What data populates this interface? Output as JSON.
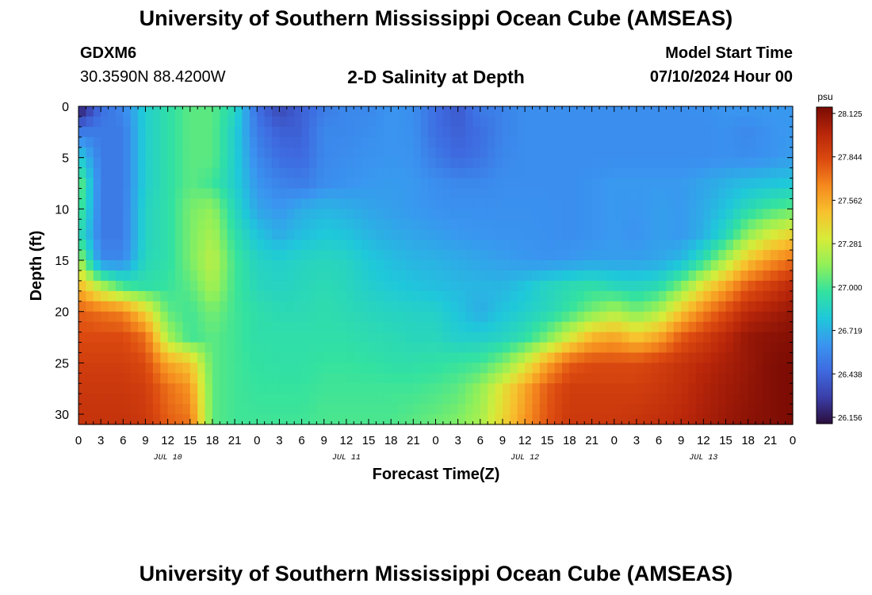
{
  "page": {
    "title": "University of Southern Mississippi Ocean Cube (AMSEAS)",
    "footer_title": "University of Southern Mississippi Ocean Cube (AMSEAS)"
  },
  "header": {
    "station_id": "GDXM6",
    "coordinates": "30.3590N  88.4200W",
    "plot_title": "2-D Salinity at Depth",
    "model_start_label": "Model Start Time",
    "model_start_value": "07/10/2024 Hour 00"
  },
  "colors": {
    "colormap": [
      "#2a0d3c",
      "#3b3ea8",
      "#3e6ae0",
      "#3a95f0",
      "#1fc8da",
      "#33e2a0",
      "#8ff05a",
      "#d6ec3a",
      "#f7c22e",
      "#f58a1e",
      "#dc4a10",
      "#b8260a",
      "#7a0b04"
    ]
  },
  "chart_data": {
    "type": "heatmap",
    "title": "2-D Salinity at Depth",
    "xlabel": "Forecast Time(Z)",
    "ylabel": "Depth (ft)",
    "x": [
      0,
      3,
      6,
      9,
      12,
      15,
      18,
      21,
      24,
      27,
      30,
      33,
      36,
      39,
      42,
      45,
      48,
      51,
      54,
      57,
      60,
      63,
      66,
      69,
      72,
      75,
      78,
      81,
      84,
      87,
      90,
      93,
      96
    ],
    "x_tick_labels": [
      "0",
      "3",
      "6",
      "9",
      "12",
      "15",
      "18",
      "21",
      "0",
      "3",
      "6",
      "9",
      "12",
      "15",
      "18",
      "21",
      "0",
      "3",
      "6",
      "9",
      "12",
      "15",
      "18",
      "21",
      "0",
      "3",
      "6",
      "9",
      "12",
      "15",
      "18",
      "21",
      "0"
    ],
    "day_labels": [
      {
        "label": "JUL 10",
        "hour": 12
      },
      {
        "label": "JUL 11",
        "hour": 36
      },
      {
        "label": "JUL 12",
        "hour": 60
      },
      {
        "label": "JUL 13",
        "hour": 84
      }
    ],
    "y": [
      0,
      2.5,
      5,
      7.5,
      10,
      12.5,
      15,
      17.5,
      20,
      22.5,
      25,
      27.5,
      31
    ],
    "y_ticks": [
      0,
      5,
      10,
      15,
      20,
      25,
      30
    ],
    "ylim": [
      0,
      31
    ],
    "y_inverted": true,
    "colorbar": {
      "unit": "psu",
      "ticks": [
        "28.125",
        "27.844",
        "27.562",
        "27.281",
        "27.000",
        "26.719",
        "26.438",
        "26.156"
      ],
      "min": 26.156,
      "max": 28.125
    },
    "z": [
      [
        26.15,
        26.5,
        26.6,
        26.85,
        26.95,
        27.05,
        27.05,
        26.9,
        26.5,
        26.35,
        26.45,
        26.55,
        26.6,
        26.6,
        26.65,
        26.62,
        26.5,
        26.42,
        26.55,
        26.58,
        26.62,
        26.62,
        26.62,
        26.62,
        26.62,
        26.62,
        26.62,
        26.62,
        26.63,
        26.65,
        26.66,
        26.66,
        26.66
      ],
      [
        26.55,
        26.55,
        26.55,
        26.85,
        26.95,
        27.05,
        27.05,
        26.85,
        26.55,
        26.45,
        26.45,
        26.6,
        26.6,
        26.62,
        26.65,
        26.63,
        26.5,
        26.45,
        26.5,
        26.58,
        26.62,
        26.62,
        26.62,
        26.62,
        26.62,
        26.62,
        26.62,
        26.62,
        26.62,
        26.63,
        26.6,
        26.64,
        26.66
      ],
      [
        26.85,
        26.55,
        26.55,
        26.85,
        26.95,
        27.05,
        27.05,
        26.85,
        26.6,
        26.5,
        26.48,
        26.6,
        26.62,
        26.64,
        26.65,
        26.64,
        26.55,
        26.48,
        26.52,
        26.6,
        26.62,
        26.62,
        26.62,
        26.62,
        26.62,
        26.62,
        26.62,
        26.62,
        26.62,
        26.63,
        26.62,
        26.64,
        26.67
      ],
      [
        27.1,
        26.55,
        26.55,
        26.85,
        26.95,
        27.05,
        27.0,
        26.85,
        26.65,
        26.58,
        26.55,
        26.62,
        26.64,
        26.66,
        26.67,
        26.66,
        26.62,
        26.6,
        26.6,
        26.62,
        26.62,
        26.62,
        26.62,
        26.64,
        26.66,
        26.66,
        26.66,
        26.66,
        26.7,
        26.74,
        26.78,
        26.8,
        26.82
      ],
      [
        27.05,
        26.55,
        26.55,
        26.88,
        26.95,
        27.1,
        27.15,
        26.9,
        26.7,
        26.65,
        26.72,
        26.75,
        26.73,
        26.7,
        26.68,
        26.66,
        26.64,
        26.63,
        26.63,
        26.63,
        26.63,
        26.63,
        26.62,
        26.64,
        26.66,
        26.65,
        26.68,
        26.66,
        26.72,
        26.8,
        26.92,
        27.0,
        27.05
      ],
      [
        26.95,
        26.55,
        26.55,
        26.88,
        26.95,
        27.1,
        27.2,
        26.95,
        26.8,
        26.72,
        26.78,
        26.82,
        26.8,
        26.75,
        26.72,
        26.7,
        26.68,
        26.66,
        26.65,
        26.64,
        26.64,
        26.63,
        26.62,
        26.64,
        26.66,
        26.64,
        26.68,
        26.66,
        26.74,
        26.9,
        27.15,
        27.3,
        27.4
      ],
      [
        27.2,
        26.6,
        26.6,
        26.9,
        26.95,
        27.1,
        27.25,
        27.0,
        26.88,
        26.85,
        26.88,
        26.9,
        26.88,
        26.82,
        26.78,
        26.75,
        26.74,
        26.72,
        26.7,
        26.68,
        26.66,
        26.64,
        26.66,
        26.68,
        26.68,
        26.68,
        26.7,
        26.76,
        26.95,
        27.2,
        27.45,
        27.6,
        27.7
      ],
      [
        27.5,
        27.2,
        27.0,
        26.95,
        26.98,
        27.05,
        27.2,
        27.0,
        26.9,
        26.88,
        26.9,
        26.92,
        26.9,
        26.85,
        26.82,
        26.8,
        26.78,
        26.76,
        26.75,
        26.75,
        26.8,
        26.88,
        26.92,
        26.95,
        26.9,
        26.88,
        26.92,
        27.1,
        27.35,
        27.55,
        27.75,
        27.85,
        27.95
      ],
      [
        27.75,
        27.7,
        27.65,
        27.4,
        27.05,
        27.0,
        27.1,
        27.0,
        26.95,
        26.92,
        26.92,
        26.94,
        26.92,
        26.9,
        26.88,
        26.87,
        26.86,
        26.8,
        26.72,
        26.8,
        26.85,
        26.9,
        26.98,
        27.1,
        27.2,
        27.1,
        27.2,
        27.45,
        27.65,
        27.8,
        27.95,
        28.0,
        28.05
      ],
      [
        27.8,
        27.8,
        27.8,
        27.7,
        27.2,
        27.0,
        27.05,
        27.0,
        26.95,
        26.95,
        26.95,
        26.95,
        26.95,
        26.93,
        26.92,
        26.9,
        26.9,
        26.85,
        26.85,
        26.88,
        26.95,
        27.1,
        27.3,
        27.5,
        27.55,
        27.45,
        27.55,
        27.75,
        27.85,
        27.95,
        28.05,
        28.08,
        28.1
      ],
      [
        27.85,
        27.85,
        27.85,
        27.8,
        27.55,
        27.45,
        27.05,
        27.0,
        26.97,
        26.96,
        26.96,
        26.98,
        26.98,
        26.97,
        26.95,
        26.95,
        26.96,
        26.98,
        27.0,
        27.1,
        27.3,
        27.55,
        27.75,
        27.8,
        27.8,
        27.8,
        27.85,
        27.9,
        27.95,
        28.0,
        28.05,
        28.1,
        28.12
      ],
      [
        27.88,
        27.88,
        27.88,
        27.85,
        27.7,
        27.6,
        27.05,
        27.0,
        26.98,
        26.98,
        26.98,
        27.0,
        27.0,
        27.0,
        27.0,
        27.0,
        27.02,
        27.05,
        27.15,
        27.35,
        27.55,
        27.75,
        27.85,
        27.85,
        27.85,
        27.85,
        27.88,
        27.92,
        27.98,
        28.02,
        28.06,
        28.1,
        28.12
      ],
      [
        27.9,
        27.9,
        27.9,
        27.88,
        27.75,
        27.7,
        27.05,
        27.0,
        27.0,
        27.0,
        27.0,
        27.02,
        27.02,
        27.02,
        27.02,
        27.05,
        27.08,
        27.12,
        27.2,
        27.4,
        27.6,
        27.78,
        27.88,
        27.88,
        27.88,
        27.9,
        27.92,
        27.95,
        28.0,
        28.04,
        28.08,
        28.1,
        28.12
      ]
    ]
  }
}
